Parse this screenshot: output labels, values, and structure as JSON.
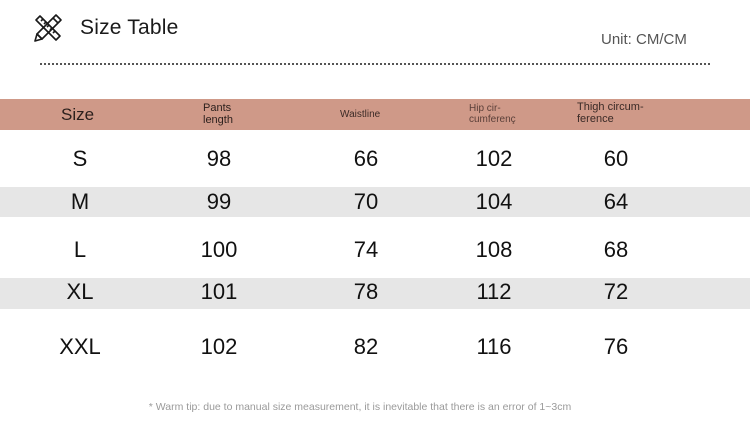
{
  "header": {
    "title": "Size Table",
    "unit": "Unit: CM/CM",
    "icon": "ruler-pencil-icon"
  },
  "table": {
    "columns": [
      {
        "label_line1": "Size",
        "label_line2": ""
      },
      {
        "label_line1": "Pants",
        "label_line2": "length"
      },
      {
        "label_line1": "Waistline",
        "label_line2": ""
      },
      {
        "label_line1": "Hip cir-",
        "label_line2": "cumferenç"
      },
      {
        "label_line1": "Thigh circum-",
        "label_line2": "ference"
      }
    ],
    "rows": [
      {
        "size": "S",
        "pants_length": "98",
        "waistline": "66",
        "hip": "102",
        "thigh": "60"
      },
      {
        "size": "M",
        "pants_length": "99",
        "waistline": "70",
        "hip": "104",
        "thigh": "64"
      },
      {
        "size": "L",
        "pants_length": "100",
        "waistline": "74",
        "hip": "108",
        "thigh": "68"
      },
      {
        "size": "XL",
        "pants_length": "101",
        "waistline": "78",
        "hip": "112",
        "thigh": "72"
      },
      {
        "size": "XXL",
        "pants_length": "102",
        "waistline": "82",
        "hip": "116",
        "thigh": "76"
      }
    ],
    "header_color": "#cf9988",
    "band_color": "#e6e6e6"
  },
  "footer": {
    "tip": "* Warm tip: due to manual size measurement, it is inevitable that there is an error of 1~3cm"
  }
}
